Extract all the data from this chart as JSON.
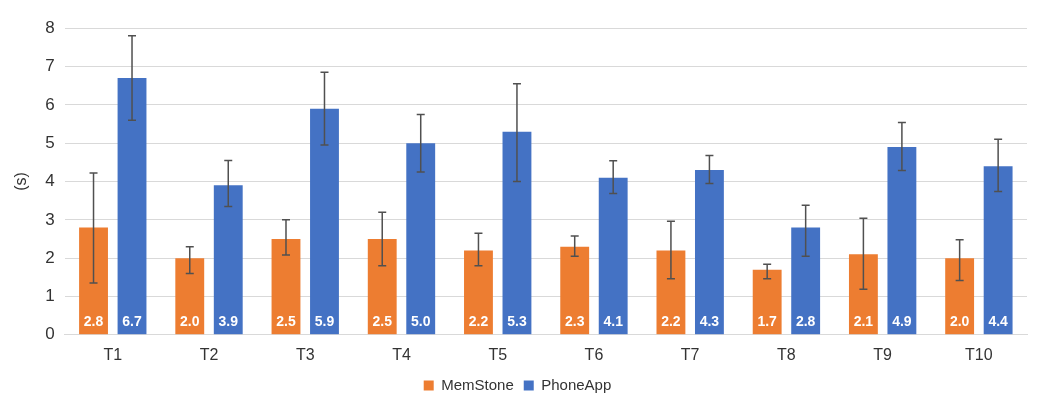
{
  "chart_data": {
    "type": "bar",
    "ylabel": "(s)",
    "categories": [
      "T1",
      "T2",
      "T3",
      "T4",
      "T5",
      "T6",
      "T7",
      "T8",
      "T9",
      "T10"
    ],
    "series": [
      {
        "name": "MemStone",
        "color": "#ed7d31",
        "values": [
          2.8,
          2.0,
          2.5,
          2.5,
          2.2,
          2.3,
          2.2,
          1.7,
          2.1,
          2.0
        ],
        "value_labels": [
          "2.8",
          "2.0",
          "2.5",
          "2.5",
          "2.2",
          "2.3",
          "2.2",
          "1.7",
          "2.1",
          "2.0"
        ],
        "errors": [
          [
            1.35,
            4.22
          ],
          [
            1.6,
            2.3
          ],
          [
            2.08,
            3.0
          ],
          [
            1.8,
            3.2
          ],
          [
            1.8,
            2.65
          ],
          [
            2.05,
            2.58
          ],
          [
            1.46,
            2.96
          ],
          [
            1.46,
            1.84
          ],
          [
            1.19,
            3.04
          ],
          [
            1.42,
            2.48
          ]
        ]
      },
      {
        "name": "PhoneApp",
        "color": "#4472c4",
        "values": [
          6.7,
          3.9,
          5.9,
          5.0,
          5.3,
          4.1,
          4.3,
          2.8,
          4.9,
          4.4
        ],
        "value_labels": [
          "6.7",
          "3.9",
          "5.9",
          "5.0",
          "5.3",
          "4.1",
          "4.3",
          "2.8",
          "4.9",
          "4.4"
        ],
        "errors": [
          [
            5.6,
            7.8
          ],
          [
            3.35,
            4.55
          ],
          [
            4.95,
            6.85
          ],
          [
            4.25,
            5.75
          ],
          [
            4.0,
            6.55
          ],
          [
            3.69,
            4.54
          ],
          [
            3.95,
            4.68
          ],
          [
            2.05,
            3.38
          ],
          [
            4.29,
            5.54
          ],
          [
            3.74,
            5.1
          ]
        ]
      }
    ],
    "ylim": [
      0,
      8
    ],
    "yticks": [
      0,
      1,
      2,
      3,
      4,
      5,
      6,
      7,
      8
    ],
    "grid": "y",
    "legend": "bottom"
  }
}
